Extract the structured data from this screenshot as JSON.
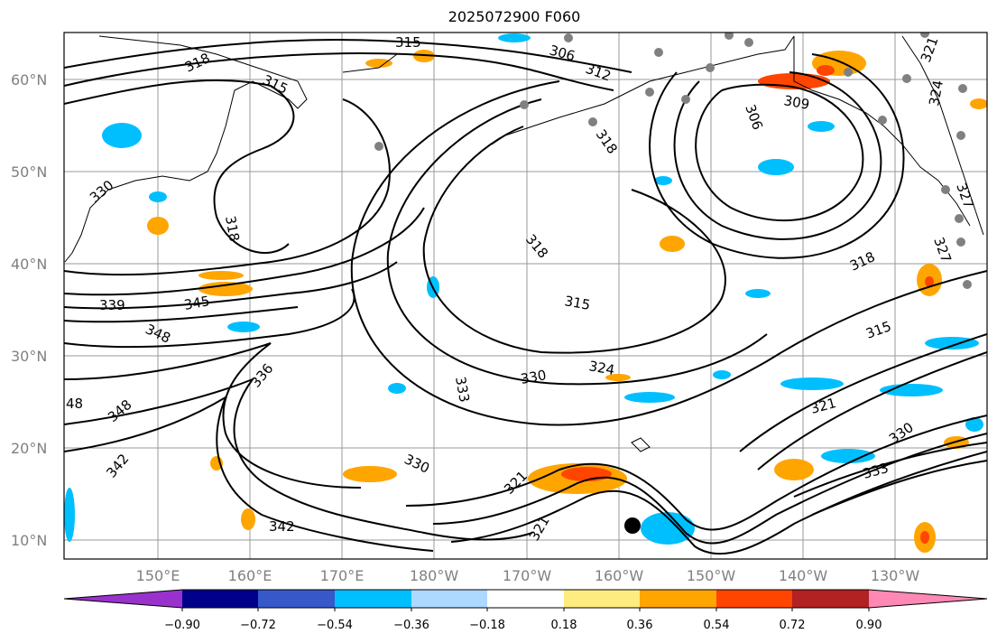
{
  "title": "2025072900 F060",
  "map": {
    "lat_labels": [
      "60°N",
      "50°N",
      "40°N",
      "30°N",
      "20°N",
      "10°N"
    ],
    "lon_labels": [
      "150°E",
      "160°E",
      "170°E",
      "180°W",
      "170°W",
      "160°W",
      "150°W",
      "140°W",
      "130°W"
    ],
    "contour_labels": [
      "315",
      "318",
      "315",
      "306",
      "312",
      "318",
      "309",
      "306",
      "321",
      "324",
      "330",
      "318",
      "318",
      "327",
      "327",
      "318",
      "339",
      "345",
      "315",
      "315",
      "348",
      "336",
      "330",
      "324",
      "333",
      "348",
      "48",
      "321",
      "330",
      "342",
      "330",
      "321",
      "333",
      "342",
      "321"
    ],
    "stations": "gray-dot-markers",
    "storm_marker": "black-dot-marker"
  },
  "colorbar": {
    "tick_labels": [
      "−0.90",
      "−0.72",
      "−0.54",
      "−0.36",
      "−0.18",
      "0.18",
      "0.36",
      "0.54",
      "0.72",
      "0.90"
    ],
    "colors": [
      "#9932cc",
      "#00008b",
      "#3658c8",
      "#00bfff",
      "#add8ff",
      "#ffffff",
      "#ffec80",
      "#ffa500",
      "#ff4500",
      "#b22222",
      "#ff88b4"
    ]
  }
}
